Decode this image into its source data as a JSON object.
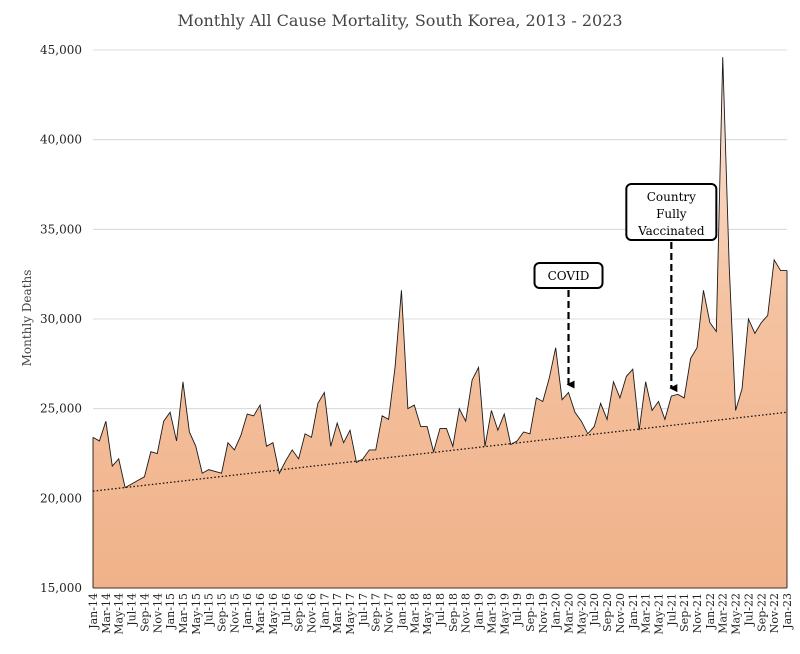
{
  "chart_data": {
    "type": "area",
    "title": "Monthly All Cause Mortality, South Korea, 2013 - 2023",
    "xlabel": "",
    "ylabel": "Monthly Deaths",
    "ylim": [
      15000,
      45000
    ],
    "yticks": [
      "15,000",
      "20,000",
      "25,000",
      "30,000",
      "35,000",
      "40,000",
      "45,000"
    ],
    "grid": true,
    "x": [
      "Jan-14",
      "Feb-14",
      "Mar-14",
      "Apr-14",
      "May-14",
      "Jun-14",
      "Jul-14",
      "Aug-14",
      "Sep-14",
      "Oct-14",
      "Nov-14",
      "Dec-14",
      "Jan-15",
      "Feb-15",
      "Mar-15",
      "Apr-15",
      "May-15",
      "Jun-15",
      "Jul-15",
      "Aug-15",
      "Sep-15",
      "Oct-15",
      "Nov-15",
      "Dec-15",
      "Jan-16",
      "Feb-16",
      "Mar-16",
      "Apr-16",
      "May-16",
      "Jun-16",
      "Jul-16",
      "Aug-16",
      "Sep-16",
      "Oct-16",
      "Nov-16",
      "Dec-16",
      "Jan-17",
      "Feb-17",
      "Mar-17",
      "Apr-17",
      "May-17",
      "Jun-17",
      "Jul-17",
      "Aug-17",
      "Sep-17",
      "Oct-17",
      "Nov-17",
      "Dec-17",
      "Jan-18",
      "Feb-18",
      "Mar-18",
      "Apr-18",
      "May-18",
      "Jun-18",
      "Jul-18",
      "Aug-18",
      "Sep-18",
      "Oct-18",
      "Nov-18",
      "Dec-18",
      "Jan-19",
      "Feb-19",
      "Mar-19",
      "Apr-19",
      "May-19",
      "Jun-19",
      "Jul-19",
      "Aug-19",
      "Sep-19",
      "Oct-19",
      "Nov-19",
      "Dec-19",
      "Jan-20",
      "Feb-20",
      "Mar-20",
      "Apr-20",
      "May-20",
      "Jun-20",
      "Jul-20",
      "Aug-20",
      "Sep-20",
      "Oct-20",
      "Nov-20",
      "Dec-20",
      "Jan-21",
      "Feb-21",
      "Mar-21",
      "Apr-21",
      "May-21",
      "Jun-21",
      "Jul-21",
      "Aug-21",
      "Sep-21",
      "Oct-21",
      "Nov-21",
      "Dec-21",
      "Jan-22",
      "Feb-22",
      "Mar-22",
      "Apr-22",
      "May-22",
      "Jun-22",
      "Jul-22",
      "Aug-22",
      "Sep-22",
      "Oct-22",
      "Nov-22",
      "Dec-22",
      "Jan-23"
    ],
    "xtick_labels": [
      "Jan-14",
      "Mar-14",
      "May-14",
      "Jul-14",
      "Sep-14",
      "Nov-14",
      "Jan-15",
      "Mar-15",
      "May-15",
      "Jul-15",
      "Sep-15",
      "Nov-15",
      "Jan-16",
      "Mar-16",
      "May-16",
      "Jul-16",
      "Sep-16",
      "Nov-16",
      "Jan-17",
      "Mar-17",
      "May-17",
      "Jul-17",
      "Sep-17",
      "Nov-17",
      "Jan-18",
      "Mar-18",
      "May-18",
      "Jul-18",
      "Sep-18",
      "Nov-18",
      "Jan-19",
      "Mar-19",
      "May-19",
      "Jul-19",
      "Sep-19",
      "Nov-19",
      "Jan-20",
      "Mar-20",
      "May-20",
      "Jul-20",
      "Sep-20",
      "Nov-20",
      "Jan-21",
      "Mar-21",
      "May-21",
      "Jul-21",
      "Sep-21",
      "Nov-21",
      "Jan-22",
      "Mar-22",
      "May-22",
      "Jul-22",
      "Sep-22",
      "Nov-22",
      "Jan-23"
    ],
    "series": [
      {
        "values": [
          23400,
          23200,
          24300,
          21800,
          22200,
          20600,
          20800,
          21000,
          21200,
          22600,
          22500,
          24300,
          24800,
          23200,
          26500,
          23700,
          22900,
          21400,
          21600,
          21500,
          21400,
          23100,
          22700,
          23500,
          24700,
          24600,
          25200,
          22900,
          23100,
          21400,
          22100,
          22700,
          22200,
          23600,
          23400,
          25300,
          25900,
          22900,
          24200,
          23100,
          23800,
          22000,
          22200,
          22700,
          22700,
          24600,
          24400,
          27300,
          31600,
          25000,
          25200,
          24000,
          24000,
          22600,
          23900,
          23900,
          22900,
          25000,
          24300,
          26600,
          27300,
          22900,
          24900,
          23800,
          24700,
          23000,
          23200,
          23700,
          23600,
          25600,
          25400,
          26700,
          28400,
          25500,
          25900,
          24800,
          24300,
          23600,
          24000,
          25300,
          24400,
          26500,
          25600,
          26800,
          27200,
          23800,
          26500,
          24900,
          25400,
          24400,
          25700,
          25800,
          25600,
          27800,
          28400,
          31600,
          29800,
          29300,
          44600,
          33000,
          24900,
          26100,
          30000,
          29200,
          29800,
          30200,
          33300,
          32700,
          32700
        ]
      }
    ],
    "trendline": {
      "start": 20400,
      "end": 24800,
      "style": "dotted"
    },
    "annotations": [
      {
        "text": "COVID",
        "target": "Mar-20"
      },
      {
        "text": "Country Fully Vaccinated",
        "lines": [
          "Country",
          "Fully",
          "Vaccinated"
        ],
        "target": "Jul-21"
      }
    ],
    "colors": {
      "fill_top": "#f8c8a6",
      "fill_bottom": "#f3b389",
      "line": "#1a1a1a",
      "grid": "#d0d0d0"
    }
  }
}
